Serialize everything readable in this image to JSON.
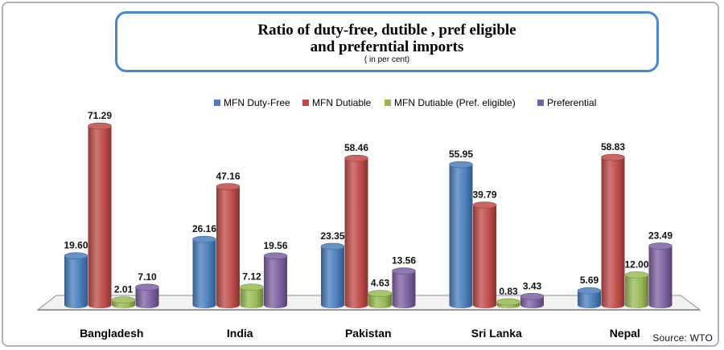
{
  "chart_data": {
    "type": "bar",
    "title_line1": "Ratio of  duty-free, dutible , pref eligible",
    "title_line2": "and preferntial imports",
    "subtitle": "( in per cent)",
    "categories": [
      "Bangladesh",
      "India",
      "Pakistan",
      "Sri Lanka",
      "Nepal"
    ],
    "series": [
      {
        "name": "MFN Duty-Free",
        "color": "#4a7ebb",
        "values": [
          19.6,
          26.16,
          23.35,
          55.95,
          5.69
        ]
      },
      {
        "name": "MFN Dutiable",
        "color": "#be4b48",
        "values": [
          71.29,
          47.16,
          58.46,
          39.79,
          58.83
        ]
      },
      {
        "name": "MFN Dutiable (Pref. eligible)",
        "color": "#98b954",
        "values": [
          2.01,
          7.12,
          4.63,
          0.83,
          12.0
        ]
      },
      {
        "name": "Preferential",
        "color": "#7d60a0",
        "values": [
          7.1,
          19.56,
          13.56,
          3.43,
          23.49
        ]
      }
    ],
    "value_labels": [
      [
        "19.60",
        "71.29",
        "2.01",
        "7.10"
      ],
      [
        "26.16",
        "47.16",
        "7.12",
        "19.56"
      ],
      [
        "23.35",
        "58.46",
        "4.63",
        "13.56"
      ],
      [
        "55.95",
        "39.79",
        "0.83",
        "3.43"
      ],
      [
        "5.69",
        "58.83",
        "12.00",
        "23.49"
      ]
    ],
    "legend_position": "top",
    "grid": false,
    "ylim": [
      0,
      75
    ]
  },
  "source": "Source: WTO"
}
